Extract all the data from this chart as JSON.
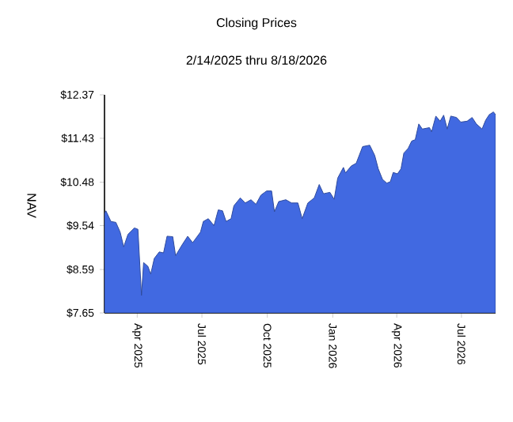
{
  "chart_data": {
    "type": "area",
    "title": "Closing Prices",
    "subtitle": "2/14/2025 thru 8/18/2026",
    "ylabel": "NAV",
    "color": "#4169e1",
    "x": [
      "2025-02-14",
      "2025-02-16",
      "2025-02-23",
      "2025-03-02",
      "2025-03-08",
      "2025-03-13",
      "2025-03-19",
      "2025-03-28",
      "2025-04-02",
      "2025-04-07",
      "2025-04-10",
      "2025-04-16",
      "2025-04-20",
      "2025-04-25",
      "2025-05-02",
      "2025-05-08",
      "2025-05-13",
      "2025-05-21",
      "2025-05-25",
      "2025-06-03",
      "2025-06-11",
      "2025-06-18",
      "2025-06-29",
      "2025-07-03",
      "2025-07-10",
      "2025-07-18",
      "2025-07-24",
      "2025-07-30",
      "2025-08-04",
      "2025-08-11",
      "2025-08-15",
      "2025-08-24",
      "2025-08-31",
      "2025-09-08",
      "2025-09-15",
      "2025-09-22",
      "2025-09-30",
      "2025-10-07",
      "2025-10-11",
      "2025-10-17",
      "2025-10-27",
      "2025-11-04",
      "2025-11-13",
      "2025-11-19",
      "2025-11-27",
      "2025-12-06",
      "2025-12-13",
      "2025-12-19",
      "2025-12-28",
      "2026-01-03",
      "2026-01-08",
      "2026-01-16",
      "2026-01-19",
      "2026-01-27",
      "2026-02-03",
      "2026-02-12",
      "2026-02-22",
      "2026-03-01",
      "2026-03-06",
      "2026-03-12",
      "2026-03-18",
      "2026-03-23",
      "2026-03-27",
      "2026-04-02",
      "2026-04-07",
      "2026-04-11",
      "2026-04-17",
      "2026-04-22",
      "2026-04-27",
      "2026-05-02",
      "2026-05-07",
      "2026-05-17",
      "2026-05-20",
      "2026-05-26",
      "2026-06-01",
      "2026-06-06",
      "2026-06-11",
      "2026-06-16",
      "2026-06-24",
      "2026-06-30",
      "2026-07-09",
      "2026-07-16",
      "2026-07-22",
      "2026-07-30",
      "2026-08-04",
      "2026-08-09",
      "2026-08-15",
      "2026-08-18"
    ],
    "values": [
      9.8,
      9.86,
      9.63,
      9.61,
      9.4,
      9.08,
      9.35,
      9.49,
      9.46,
      8.03,
      8.74,
      8.66,
      8.49,
      8.83,
      8.97,
      8.95,
      9.31,
      9.3,
      8.89,
      9.12,
      9.31,
      9.17,
      9.4,
      9.63,
      9.69,
      9.54,
      9.88,
      9.86,
      9.63,
      9.69,
      9.97,
      10.14,
      10.03,
      10.1,
      10.0,
      10.2,
      10.29,
      10.29,
      9.84,
      10.06,
      10.1,
      10.03,
      10.03,
      9.69,
      10.03,
      10.14,
      10.43,
      10.23,
      10.26,
      10.11,
      10.57,
      10.8,
      10.68,
      10.83,
      10.89,
      11.25,
      11.28,
      11.06,
      10.77,
      10.54,
      10.46,
      10.49,
      10.69,
      10.66,
      10.77,
      11.11,
      11.21,
      11.37,
      11.4,
      11.74,
      11.63,
      11.66,
      11.57,
      11.91,
      11.8,
      11.93,
      11.63,
      11.91,
      11.88,
      11.78,
      11.8,
      11.88,
      11.74,
      11.63,
      11.82,
      11.94,
      12.0,
      11.94
    ],
    "xlim": [
      "2025-02-14",
      "2026-08-18"
    ],
    "xticks": [
      {
        "value": "2025-04-01",
        "label": "Apr 2025"
      },
      {
        "value": "2025-07-01",
        "label": "Jul 2025"
      },
      {
        "value": "2025-10-01",
        "label": "Oct 2025"
      },
      {
        "value": "2026-01-01",
        "label": "Jan 2026"
      },
      {
        "value": "2026-04-01",
        "label": "Apr 2026"
      },
      {
        "value": "2026-07-01",
        "label": "Jul 2026"
      }
    ],
    "ylim": [
      7.65,
      12.37
    ],
    "yticks": [
      {
        "value": 7.65,
        "label": "$7.65"
      },
      {
        "value": 8.59,
        "label": "$8.59"
      },
      {
        "value": 9.54,
        "label": "$9.54"
      },
      {
        "value": 10.48,
        "label": "$10.48"
      },
      {
        "value": 11.43,
        "label": "$11.43"
      },
      {
        "value": 12.37,
        "label": "$12.37"
      }
    ]
  }
}
